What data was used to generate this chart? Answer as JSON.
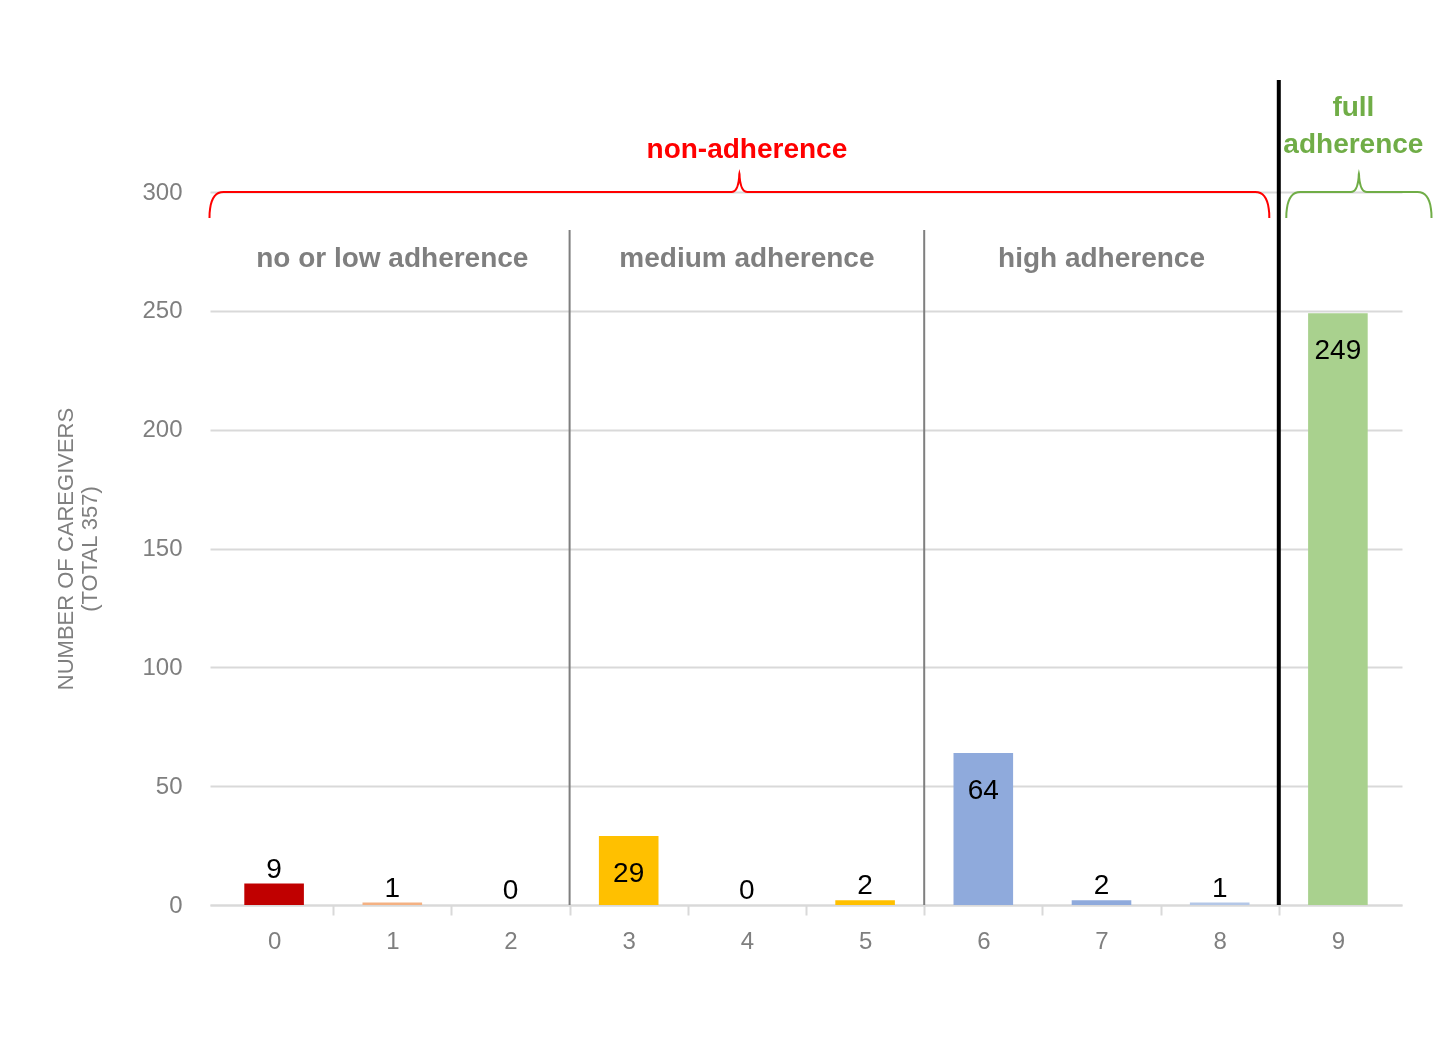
{
  "chart_data": {
    "type": "bar",
    "ylabel": "NUMBER OF CAREGIVERS\n(TOTAL 357)",
    "x": [
      0,
      1,
      2,
      3,
      4,
      5,
      6,
      7,
      8,
      9
    ],
    "values": [
      9,
      1,
      0,
      29,
      0,
      2,
      64,
      2,
      1,
      249
    ],
    "colors": [
      "#c00000",
      "#f4b183",
      "#f4b183",
      "#ffc000",
      "#ffc000",
      "#ffc000",
      "#8faadc",
      "#8faadc",
      "#b4c7e7",
      "#a9d18e"
    ],
    "data_labels": true,
    "xlim": [
      -0.5,
      9.5
    ],
    "xticks": [
      0,
      {
        "value": 0.5,
        "label": null
      },
      1,
      {
        "value": 1.5,
        "label": null
      },
      2,
      {
        "value": 2.5,
        "label": null
      },
      3,
      {
        "value": 3.5,
        "label": null
      },
      4,
      {
        "value": 4.5,
        "label": null
      },
      5,
      {
        "value": 5.5,
        "label": null
      },
      6,
      {
        "value": 6.5,
        "label": null
      },
      7,
      {
        "value": 7.5,
        "label": null
      },
      8,
      {
        "value": 8.5,
        "label": null
      },
      9
    ],
    "ylim": [
      0,
      300
    ],
    "yticks": [
      0,
      50,
      100,
      150,
      200,
      250,
      300
    ],
    "grid": "y",
    "ref_lines": [
      {
        "axis": "x",
        "value": 2.5,
        "color": "#7f7f7f"
      },
      {
        "axis": "x",
        "value": 5.5,
        "color": "#7f7f7f"
      },
      {
        "axis": "x",
        "value": 8.5,
        "color": "#000000"
      }
    ],
    "annotations": [
      "non-adherence",
      "full\nadherence",
      "no or low adherence",
      "medium adherence",
      "high adherence"
    ]
  }
}
